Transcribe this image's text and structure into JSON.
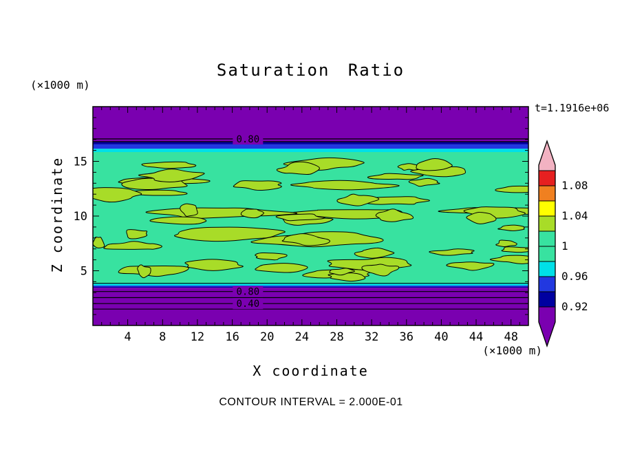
{
  "page": {
    "background": "#ffffff"
  },
  "colors": {
    "pink": "#F2B2C2",
    "red": "#E62020",
    "orange": "#F08020",
    "yellow": "#FFFF00",
    "yellowgreen": "#A8DC28",
    "green": "#38E2A0",
    "cyan": "#00E0E8",
    "blue": "#2238E0",
    "navy": "#0000A0",
    "purple": "#7A00B0",
    "line": "#000000"
  },
  "chart_data": {
    "type": "heatmap",
    "title": "Saturation Ratio",
    "xlabel": "X coordinate",
    "ylabel": "Z coordinate",
    "x_unit_label": "(×1000 m)",
    "y_unit_label": "(×1000 m)",
    "time_annotation": "t=1.1916e+06",
    "footer": "CONTOUR INTERVAL = 2.000E-01",
    "xlim": [
      0,
      50
    ],
    "ylim": [
      0,
      20
    ],
    "xticks": [
      4,
      8,
      12,
      16,
      20,
      24,
      28,
      32,
      36,
      40,
      44,
      48
    ],
    "yticks": [
      5,
      10,
      15
    ],
    "grid": false,
    "bands": [
      {
        "z0": 16.8,
        "z1": 20.0,
        "color": "purple"
      },
      {
        "z0": 16.55,
        "z1": 16.8,
        "color": "navy"
      },
      {
        "z0": 16.15,
        "z1": 16.55,
        "color": "blue"
      },
      {
        "z0": 15.85,
        "z1": 16.15,
        "color": "cyan"
      },
      {
        "z0": 3.85,
        "z1": 15.85,
        "color": "green"
      },
      {
        "z0": 3.65,
        "z1": 3.85,
        "color": "cyan"
      },
      {
        "z0": 3.55,
        "z1": 3.65,
        "color": "blue"
      },
      {
        "z0": 3.45,
        "z1": 3.55,
        "color": "navy"
      },
      {
        "z0": 0.0,
        "z1": 3.45,
        "color": "purple"
      }
    ],
    "contour_lines": [
      {
        "z": 17.05,
        "label": "0.80",
        "label_x": 17.8
      },
      {
        "z": 16.8,
        "label": ""
      },
      {
        "z": 3.85,
        "label": ""
      },
      {
        "z": 3.1,
        "label": "0.80",
        "label_x": 17.8
      },
      {
        "z": 2.55,
        "label": ""
      },
      {
        "z": 2.0,
        "label": "0.40",
        "label_x": 17.8
      },
      {
        "z": 1.5,
        "label": ""
      }
    ],
    "field_texture": {
      "description": "irregular yellow-green saturation blobs inside green band",
      "fill": "yellowgreen",
      "outline": "#000000",
      "seed": 42,
      "count": 52
    },
    "colorbar": {
      "labels": [
        "1.08",
        "1.04",
        "1",
        "0.96",
        "0.92"
      ],
      "colors_top_to_bottom": [
        "pink",
        "red",
        "orange",
        "yellow",
        "yellowgreen",
        "green",
        "cyan",
        "blue",
        "navy",
        "purple"
      ]
    }
  }
}
